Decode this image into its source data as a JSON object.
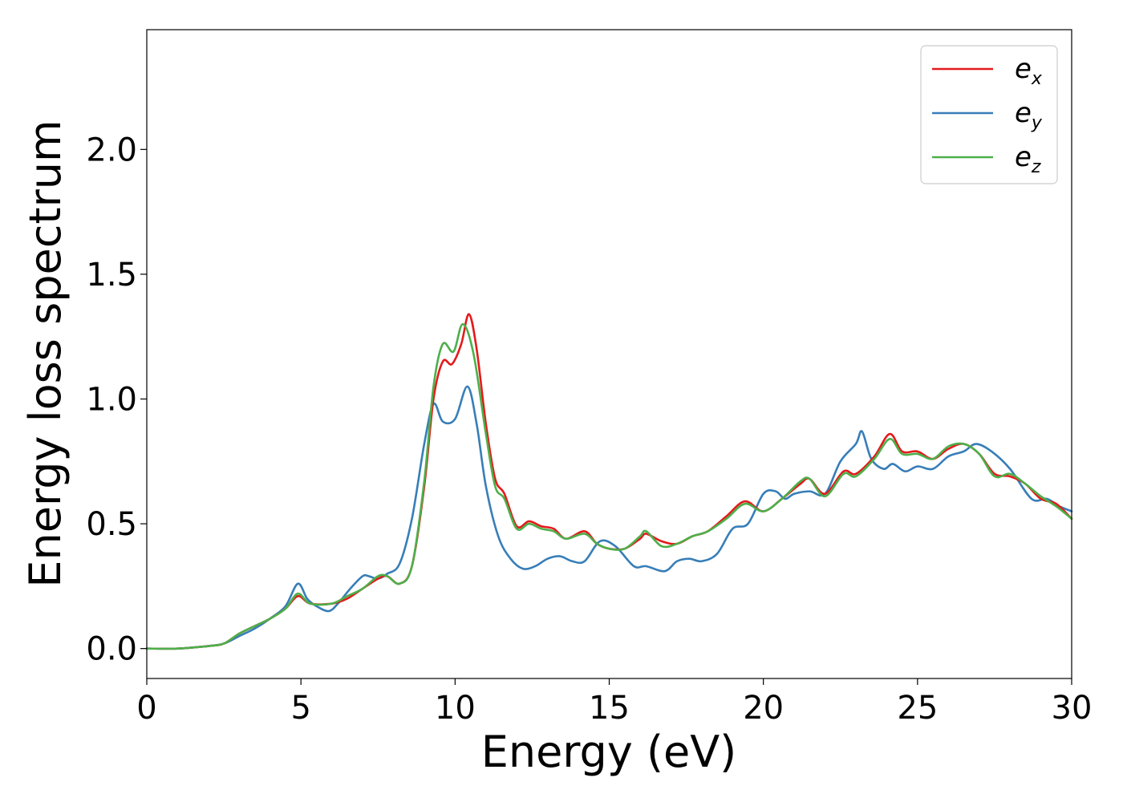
{
  "chart_data": {
    "type": "line",
    "title": "",
    "xlabel": "Energy (eV)",
    "ylabel": "Energy loss spectrum",
    "xlim": [
      0,
      30
    ],
    "ylim": [
      -0.12,
      2.48
    ],
    "xticks": [
      0,
      5,
      10,
      15,
      20,
      25,
      30
    ],
    "xtick_labels": [
      "0",
      "5",
      "10",
      "15",
      "20",
      "25",
      "30"
    ],
    "yticks": [
      0.0,
      0.5,
      1.0,
      1.5,
      2.0
    ],
    "ytick_labels": [
      "0.0",
      "0.5",
      "1.0",
      "1.5",
      "2.0"
    ],
    "grid": false,
    "legend_position": "top-right",
    "series": [
      {
        "name": "e_x",
        "legend_base": "e",
        "legend_sub": "x",
        "color": "#e41a1c",
        "x": [
          0,
          1,
          2,
          2.5,
          3,
          3.5,
          4,
          4.5,
          4.9,
          5.3,
          6,
          6.5,
          7,
          7.5,
          7.8,
          8.2,
          8.6,
          9,
          9.3,
          9.6,
          9.9,
          10.2,
          10.45,
          10.7,
          11,
          11.3,
          11.6,
          12,
          12.4,
          12.8,
          13.2,
          13.6,
          14.2,
          14.6,
          15,
          15.5,
          16,
          16.2,
          16.7,
          17.2,
          17.7,
          18.2,
          18.8,
          19.4,
          20,
          20.6,
          21.2,
          21.5,
          22,
          22.6,
          23,
          23.6,
          24.1,
          24.5,
          25,
          25.5,
          26,
          26.5,
          27,
          27.5,
          28,
          28.5,
          29,
          29.5,
          30
        ],
        "y": [
          0.0,
          0.0,
          0.01,
          0.02,
          0.06,
          0.09,
          0.12,
          0.16,
          0.21,
          0.18,
          0.18,
          0.2,
          0.24,
          0.28,
          0.29,
          0.26,
          0.33,
          0.65,
          1.0,
          1.15,
          1.14,
          1.22,
          1.34,
          1.2,
          0.9,
          0.68,
          0.62,
          0.49,
          0.51,
          0.49,
          0.48,
          0.44,
          0.47,
          0.42,
          0.4,
          0.4,
          0.44,
          0.46,
          0.43,
          0.42,
          0.45,
          0.47,
          0.53,
          0.59,
          0.55,
          0.6,
          0.66,
          0.68,
          0.62,
          0.71,
          0.7,
          0.77,
          0.86,
          0.79,
          0.79,
          0.76,
          0.8,
          0.82,
          0.78,
          0.7,
          0.69,
          0.66,
          0.6,
          0.58,
          0.52
        ]
      },
      {
        "name": "e_y",
        "legend_base": "e",
        "legend_sub": "y",
        "color": "#377eb8",
        "x": [
          0,
          1,
          2,
          2.5,
          3,
          3.5,
          4,
          4.5,
          4.9,
          5.2,
          5.5,
          5.9,
          6.2,
          6.6,
          7,
          7.2,
          7.5,
          7.8,
          8.2,
          8.6,
          9,
          9.3,
          9.6,
          10,
          10.4,
          10.7,
          11,
          11.4,
          11.8,
          12.2,
          12.6,
          13,
          13.4,
          13.8,
          14.2,
          14.7,
          15.2,
          15.8,
          16.2,
          16.8,
          17.2,
          17.6,
          18,
          18.5,
          19,
          19.5,
          20,
          20.4,
          20.7,
          21,
          21.5,
          22,
          22.5,
          23,
          23.2,
          23.5,
          23.9,
          24.2,
          24.6,
          25,
          25.5,
          26,
          26.5,
          26.9,
          27.4,
          28,
          28.7,
          29.2,
          29.6,
          30
        ],
        "y": [
          0.0,
          0.0,
          0.01,
          0.02,
          0.05,
          0.08,
          0.12,
          0.17,
          0.26,
          0.2,
          0.17,
          0.15,
          0.18,
          0.24,
          0.29,
          0.29,
          0.28,
          0.3,
          0.34,
          0.52,
          0.82,
          0.98,
          0.91,
          0.92,
          1.05,
          0.9,
          0.65,
          0.45,
          0.36,
          0.32,
          0.33,
          0.36,
          0.37,
          0.35,
          0.35,
          0.43,
          0.41,
          0.33,
          0.33,
          0.31,
          0.35,
          0.36,
          0.35,
          0.38,
          0.48,
          0.5,
          0.62,
          0.63,
          0.6,
          0.62,
          0.63,
          0.62,
          0.75,
          0.82,
          0.87,
          0.76,
          0.72,
          0.74,
          0.71,
          0.73,
          0.72,
          0.77,
          0.79,
          0.82,
          0.79,
          0.72,
          0.6,
          0.6,
          0.57,
          0.55
        ]
      },
      {
        "name": "e_z",
        "legend_base": "e",
        "legend_sub": "z",
        "color": "#4daf4a",
        "x": [
          0,
          1,
          2,
          2.5,
          3,
          3.5,
          4,
          4.5,
          4.9,
          5.3,
          6,
          6.5,
          7,
          7.5,
          7.8,
          8.2,
          8.6,
          9,
          9.3,
          9.6,
          9.95,
          10.25,
          10.6,
          11,
          11.3,
          11.6,
          12,
          12.4,
          12.8,
          13.2,
          13.6,
          14.2,
          14.6,
          15,
          15.5,
          16,
          16.2,
          16.7,
          17.2,
          17.7,
          18.2,
          18.8,
          19.4,
          20,
          20.6,
          21.2,
          21.5,
          22,
          22.6,
          23,
          23.6,
          24.1,
          24.5,
          25,
          25.5,
          26,
          26.5,
          27,
          27.5,
          28,
          28.5,
          29,
          29.5,
          30
        ],
        "y": [
          0.0,
          0.0,
          0.01,
          0.02,
          0.06,
          0.09,
          0.12,
          0.16,
          0.22,
          0.18,
          0.18,
          0.21,
          0.24,
          0.29,
          0.29,
          0.26,
          0.33,
          0.67,
          1.05,
          1.22,
          1.19,
          1.3,
          1.18,
          0.86,
          0.65,
          0.6,
          0.48,
          0.5,
          0.48,
          0.47,
          0.44,
          0.46,
          0.42,
          0.4,
          0.4,
          0.45,
          0.47,
          0.41,
          0.42,
          0.45,
          0.47,
          0.52,
          0.58,
          0.55,
          0.6,
          0.67,
          0.68,
          0.61,
          0.7,
          0.69,
          0.76,
          0.84,
          0.78,
          0.78,
          0.76,
          0.81,
          0.82,
          0.78,
          0.69,
          0.7,
          0.66,
          0.61,
          0.57,
          0.52
        ]
      }
    ]
  }
}
